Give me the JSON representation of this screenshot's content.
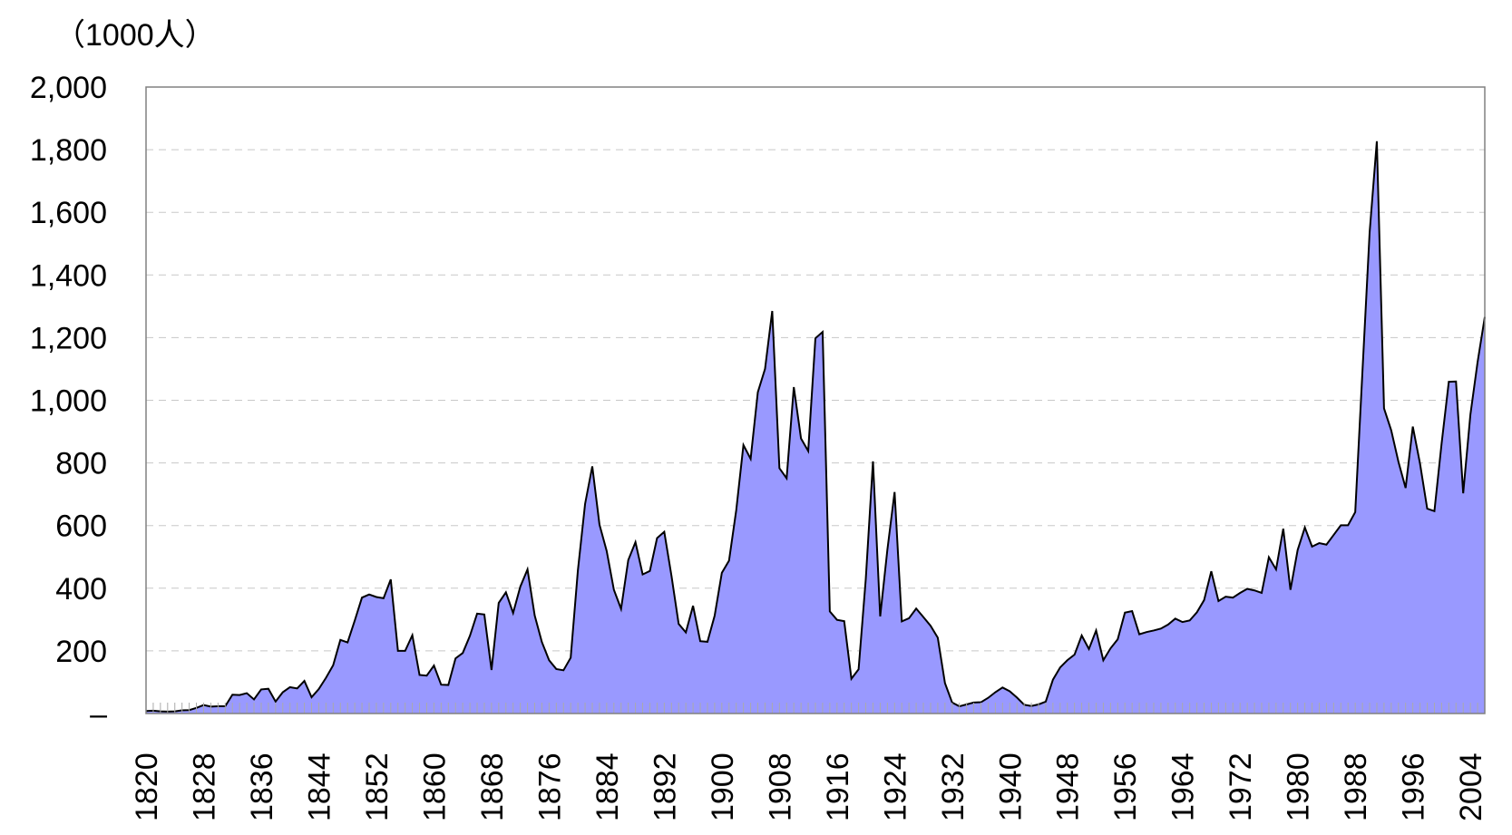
{
  "chart_data": {
    "type": "area",
    "unit_label": "（1000人）",
    "title": "",
    "xlabel": "",
    "ylabel": "",
    "xlim": [
      1820,
      2006
    ],
    "ylim": [
      0,
      2000
    ],
    "y_ticks": [
      {
        "value": 0,
        "label": "–"
      },
      {
        "value": 200,
        "label": "200"
      },
      {
        "value": 400,
        "label": "400"
      },
      {
        "value": 600,
        "label": "600"
      },
      {
        "value": 800,
        "label": "800"
      },
      {
        "value": 1000,
        "label": "1,000"
      },
      {
        "value": 1200,
        "label": "1,200"
      },
      {
        "value": 1400,
        "label": "1,400"
      },
      {
        "value": 1600,
        "label": "1,600"
      },
      {
        "value": 1800,
        "label": "1,800"
      },
      {
        "value": 2000,
        "label": "2,000"
      }
    ],
    "x_ticks": [
      "1820",
      "1828",
      "1836",
      "1844",
      "1852",
      "1860",
      "1868",
      "1876",
      "1884",
      "1892",
      "1900",
      "1908",
      "1916",
      "1924",
      "1932",
      "1940",
      "1948",
      "1956",
      "1964",
      "1972",
      "1980",
      "1988",
      "1996",
      "2004"
    ],
    "grid": {
      "horizontal_dashed": true,
      "vertical": false
    },
    "legend": "none",
    "colors": {
      "fill": "#9999ff",
      "line": "#000000",
      "grid": "#c8c8c8",
      "axis": "#808080",
      "minor_tick": "#aaaaaa"
    },
    "series": [
      {
        "x": [
          1820,
          1821,
          1822,
          1823,
          1824,
          1825,
          1826,
          1827,
          1828,
          1829,
          1830,
          1831,
          1832,
          1833,
          1834,
          1835,
          1836,
          1837,
          1838,
          1839,
          1840,
          1841,
          1842,
          1843,
          1844,
          1845,
          1846,
          1847,
          1848,
          1849,
          1850,
          1851,
          1852,
          1853,
          1854,
          1855,
          1856,
          1857,
          1858,
          1859,
          1860,
          1861,
          1862,
          1863,
          1864,
          1865,
          1866,
          1867,
          1868,
          1869,
          1870,
          1871,
          1872,
          1873,
          1874,
          1875,
          1876,
          1877,
          1878,
          1879,
          1880,
          1881,
          1882,
          1883,
          1884,
          1885,
          1886,
          1887,
          1888,
          1889,
          1890,
          1891,
          1892,
          1893,
          1894,
          1895,
          1896,
          1897,
          1898,
          1899,
          1900,
          1901,
          1902,
          1903,
          1904,
          1905,
          1906,
          1907,
          1908,
          1909,
          1910,
          1911,
          1912,
          1913,
          1914,
          1915,
          1916,
          1917,
          1918,
          1919,
          1920,
          1921,
          1922,
          1923,
          1924,
          1925,
          1926,
          1927,
          1928,
          1929,
          1930,
          1931,
          1932,
          1933,
          1934,
          1935,
          1936,
          1937,
          1938,
          1939,
          1940,
          1941,
          1942,
          1943,
          1944,
          1945,
          1946,
          1947,
          1948,
          1949,
          1950,
          1951,
          1952,
          1953,
          1954,
          1955,
          1956,
          1957,
          1958,
          1959,
          1960,
          1961,
          1962,
          1963,
          1964,
          1965,
          1966,
          1967,
          1968,
          1969,
          1970,
          1971,
          1972,
          1973,
          1974,
          1975,
          1976,
          1977,
          1978,
          1979,
          1980,
          1981,
          1982,
          1983,
          1984,
          1985,
          1986,
          1987,
          1988,
          1989,
          1990,
          1991,
          1992,
          1993,
          1994,
          1995,
          1996,
          1997,
          1998,
          1999,
          2000,
          2001,
          2002,
          2003,
          2004,
          2005,
          2006
        ],
        "values": [
          8,
          9,
          7,
          6,
          7,
          10,
          11,
          18,
          27,
          22,
          23,
          23,
          60,
          59,
          65,
          45,
          77,
          79,
          38,
          68,
          84,
          80,
          104,
          52,
          78,
          114,
          154,
          235,
          227,
          297,
          370,
          380,
          372,
          368,
          428,
          200,
          200,
          250,
          123,
          121,
          153,
          92,
          91,
          176,
          193,
          248,
          319,
          316,
          139,
          353,
          387,
          321,
          405,
          460,
          313,
          228,
          170,
          142,
          138,
          178,
          457,
          669,
          789,
          603,
          519,
          395,
          334,
          490,
          547,
          444,
          455,
          560,
          580,
          440,
          286,
          259,
          344,
          231,
          229,
          312,
          449,
          488,
          649,
          857,
          813,
          1026,
          1100,
          1285,
          783,
          751,
          1042,
          878,
          838,
          1198,
          1218,
          326,
          299,
          295,
          111,
          141,
          430,
          805,
          310,
          523,
          707,
          294,
          304,
          335,
          308,
          280,
          242,
          97,
          35,
          23,
          29,
          35,
          36,
          50,
          68,
          83,
          71,
          51,
          28,
          24,
          29,
          38,
          108,
          147,
          170,
          188,
          249,
          206,
          265,
          170,
          208,
          237,
          322,
          327,
          253,
          260,
          265,
          271,
          284,
          303,
          292,
          297,
          323,
          362,
          454,
          359,
          373,
          370,
          385,
          398,
          393,
          385,
          499,
          460,
          590,
          395,
          522,
          594,
          533,
          544,
          539,
          570,
          601,
          601,
          643,
          1091,
          1536,
          1827,
          974,
          904,
          804,
          720,
          916,
          798,
          654,
          646,
          862,
          1059,
          1060,
          703,
          954,
          1122,
          1266
        ]
      }
    ]
  }
}
